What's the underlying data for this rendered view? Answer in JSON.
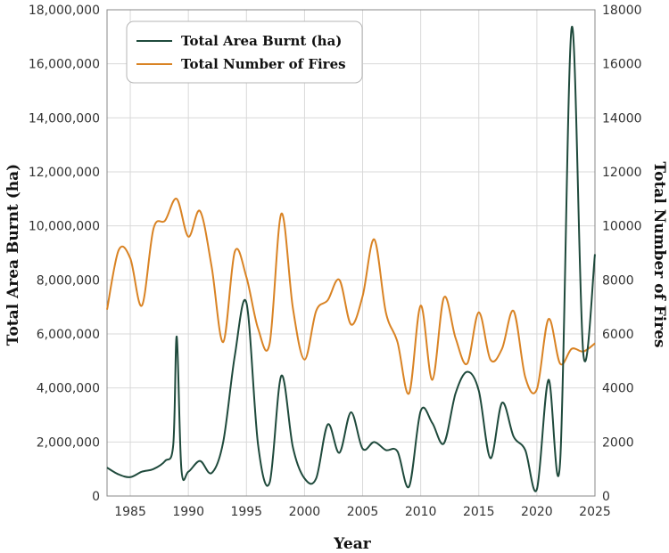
{
  "chart_data": {
    "type": "line",
    "xlabel": "Year",
    "ylabel_left": "Total Area Burnt (ha)",
    "ylabel_right": "Total Number of Fires",
    "xlim": [
      1983,
      2025
    ],
    "ylim_left": [
      0,
      18000000
    ],
    "ylim_right": [
      0,
      18000
    ],
    "x_ticks": [
      "1985",
      "1990",
      "1995",
      "2000",
      "2005",
      "2010",
      "2015",
      "2020",
      "2025"
    ],
    "y_left_ticks": [
      "0",
      "2,000,000",
      "4,000,000",
      "6,000,000",
      "8,000,000",
      "10,000,000",
      "12,000,000",
      "14,000,000",
      "16,000,000",
      "18,000,000"
    ],
    "y_right_ticks": [
      "0",
      "2000",
      "4000",
      "6000",
      "8000",
      "10000",
      "12000",
      "14000",
      "16000",
      "18000"
    ],
    "grid": true,
    "legend_position": "top-left",
    "series": [
      {
        "name": "Total Area Burnt (ha)",
        "axis": "left",
        "color": "#1f4a3c",
        "x": [
          1983,
          1984,
          1985,
          1986,
          1987,
          1988,
          1988.7,
          1989,
          1989.4,
          1990,
          1991,
          1992,
          1993,
          1994,
          1995,
          1996,
          1997,
          1998,
          1999,
          2000,
          2001,
          2002,
          2003,
          2004,
          2005,
          2006,
          2007,
          2008,
          2009,
          2010,
          2011,
          2012,
          2013,
          2014,
          2015,
          2016,
          2017,
          2018,
          2019,
          2020,
          2021,
          2022,
          2023,
          2024,
          2025
        ],
        "y": [
          1050000,
          800000,
          700000,
          900000,
          1000000,
          1300000,
          1900000,
          5900000,
          1000000,
          900000,
          1300000,
          850000,
          2000000,
          5200000,
          7150000,
          1900000,
          500000,
          4450000,
          1800000,
          650000,
          650000,
          2650000,
          1600000,
          3100000,
          1750000,
          2000000,
          1700000,
          1650000,
          350000,
          3150000,
          2700000,
          1950000,
          3800000,
          4600000,
          3900000,
          1400000,
          3450000,
          2200000,
          1700000,
          250000,
          4300000,
          1250000,
          17350000,
          5250000,
          8950000
        ]
      },
      {
        "name": "Total Number of Fires",
        "axis": "right",
        "color": "#d98324",
        "x": [
          1983,
          1984,
          1985,
          1986,
          1987,
          1988,
          1989,
          1990,
          1991,
          1992,
          1993,
          1994,
          1995,
          1996,
          1997,
          1998,
          1999,
          2000,
          2001,
          2002,
          2003,
          2004,
          2005,
          2006,
          2007,
          2008,
          2009,
          2010,
          2011,
          2012,
          2013,
          2014,
          2015,
          2016,
          2017,
          2018,
          2019,
          2020,
          2021,
          2022,
          2023,
          2024,
          2025
        ],
        "y": [
          6900,
          9100,
          8800,
          7050,
          9900,
          10200,
          11000,
          9600,
          10550,
          8500,
          5700,
          9050,
          8100,
          6200,
          5650,
          10450,
          6950,
          5050,
          6850,
          7250,
          8000,
          6350,
          7400,
          9500,
          6800,
          5700,
          3800,
          7050,
          4300,
          7350,
          5850,
          4900,
          6800,
          5050,
          5450,
          6850,
          4400,
          3950,
          6550,
          4900,
          5450,
          5350,
          5650
        ]
      }
    ]
  }
}
